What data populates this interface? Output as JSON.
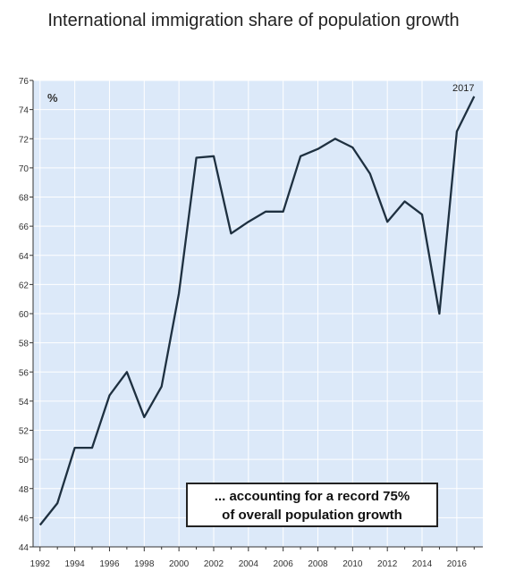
{
  "chart_data": {
    "type": "line",
    "title": "International immigration share of population growth",
    "unit_label": "%",
    "end_label": "2017",
    "x": [
      1992,
      1993,
      1994,
      1995,
      1996,
      1997,
      1998,
      1999,
      2000,
      2001,
      2002,
      2003,
      2004,
      2005,
      2006,
      2007,
      2008,
      2009,
      2010,
      2011,
      2012,
      2013,
      2014,
      2015,
      2016,
      2017
    ],
    "series": [
      {
        "values": [
          45.5,
          47.0,
          50.8,
          50.8,
          54.4,
          56.0,
          52.9,
          55.0,
          61.4,
          70.7,
          70.8,
          65.5,
          66.3,
          67.0,
          67.0,
          70.8,
          71.3,
          72.0,
          71.4,
          69.6,
          66.3,
          67.7,
          66.8,
          60.0,
          72.5,
          74.9
        ]
      }
    ],
    "xticks": [
      "1992",
      "1994",
      "1996",
      "1998",
      "2000",
      "2002",
      "2004",
      "2006",
      "2008",
      "2010",
      "2012",
      "2014",
      "2016"
    ],
    "yticks": [
      "44",
      "46",
      "48",
      "50",
      "52",
      "54",
      "56",
      "58",
      "60",
      "62",
      "64",
      "66",
      "68",
      "70",
      "72",
      "74",
      "76"
    ],
    "xlim": [
      1991.6,
      2017.5
    ],
    "ylim": [
      44,
      76
    ],
    "grid": true,
    "colors": {
      "plot_background": "#dce9f9",
      "grid": "#ffffff",
      "line": "#1e3040"
    },
    "annotation": {
      "line1": "... accounting for a record 75%",
      "line2": "of overall population growth"
    }
  }
}
